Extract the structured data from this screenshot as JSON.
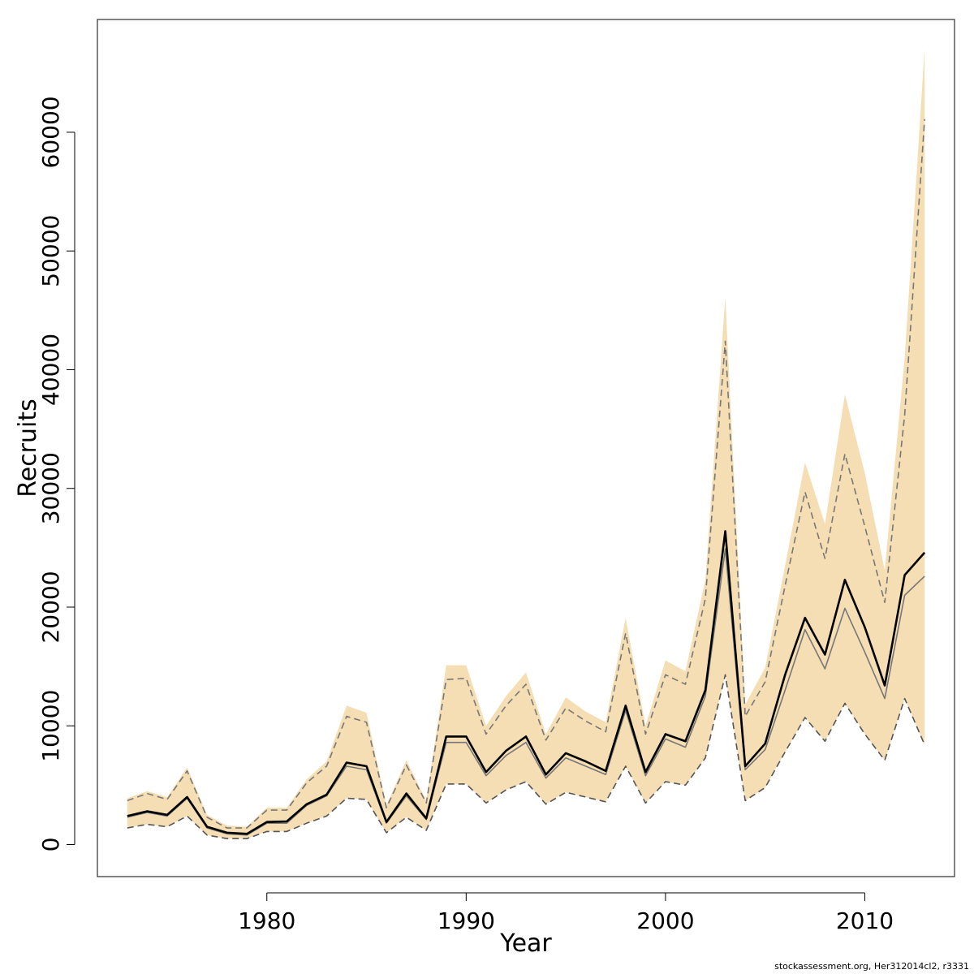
{
  "chart_data": {
    "type": "line",
    "title": "",
    "xlabel": "Year",
    "ylabel": "Recruits",
    "xlim": [
      1971.5,
      2014.5
    ],
    "ylim": [
      -2700,
      69500
    ],
    "x_ticks": [
      1980,
      1990,
      2000,
      2010
    ],
    "y_ticks": [
      0,
      10000,
      20000,
      30000,
      40000,
      50000,
      60000
    ],
    "grid": false,
    "band_color": "#f5deb3",
    "x": [
      1973,
      1974,
      1975,
      1976,
      1977,
      1978,
      1979,
      1980,
      1981,
      1982,
      1983,
      1984,
      1985,
      1986,
      1987,
      1988,
      1989,
      1990,
      1991,
      1992,
      1993,
      1994,
      1995,
      1996,
      1997,
      1998,
      1999,
      2000,
      2001,
      2002,
      2003,
      2004,
      2005,
      2006,
      2007,
      2008,
      2009,
      2010,
      2011,
      2012,
      2013
    ],
    "series": [
      {
        "role": "band_upper",
        "style": "fill",
        "color": "#f5deb3",
        "values": [
          3900,
          4500,
          4000,
          6500,
          2500,
          1600,
          1500,
          3100,
          3100,
          5500,
          7000,
          11700,
          11100,
          3300,
          7100,
          3700,
          15100,
          15100,
          10000,
          12500,
          14500,
          9300,
          12400,
          11200,
          10300,
          19100,
          10000,
          15500,
          14600,
          22300,
          46100,
          11800,
          14900,
          23500,
          32200,
          27000,
          37900,
          31300,
          23100,
          41000,
          67000
        ]
      },
      {
        "role": "band_lower",
        "style": "fill",
        "color": "#f5deb3",
        "values": [
          1400,
          1700,
          1500,
          2400,
          800,
          500,
          500,
          1100,
          1100,
          1800,
          2400,
          3900,
          3800,
          1000,
          2300,
          1200,
          5100,
          5100,
          3500,
          4600,
          5300,
          3400,
          4400,
          4000,
          3600,
          6600,
          3500,
          5300,
          5000,
          7300,
          14300,
          3700,
          4800,
          7800,
          10700,
          8700,
          11900,
          9300,
          7100,
          12300,
          8400
        ]
      },
      {
        "role": "upper_ci",
        "style": "dashed",
        "color": "#777777",
        "values": [
          3700,
          4300,
          3800,
          6200,
          2300,
          1400,
          1400,
          2900,
          2900,
          5200,
          6600,
          10800,
          10300,
          3100,
          6700,
          3500,
          13900,
          14000,
          9300,
          11700,
          13500,
          8800,
          11500,
          10400,
          9500,
          17800,
          9300,
          14300,
          13500,
          20700,
          42400,
          10800,
          13700,
          21800,
          29700,
          24100,
          32900,
          26800,
          20400,
          36200,
          61100
        ]
      },
      {
        "role": "lower_ci",
        "style": "dashed",
        "color": "#555555",
        "values": [
          1400,
          1700,
          1500,
          2400,
          800,
          500,
          500,
          1100,
          1100,
          1800,
          2400,
          3900,
          3800,
          1000,
          2300,
          1200,
          5100,
          5100,
          3500,
          4600,
          5300,
          3400,
          4400,
          4000,
          3600,
          6600,
          3500,
          5300,
          5000,
          7300,
          14300,
          3700,
          4800,
          7800,
          10700,
          8700,
          11900,
          9300,
          7100,
          12300,
          8400
        ]
      },
      {
        "role": "median",
        "style": "solid",
        "color": "#777777",
        "width": 1.6,
        "values": [
          2300,
          2700,
          2400,
          3900,
          1400,
          900,
          800,
          1800,
          1800,
          3300,
          4100,
          6600,
          6300,
          1800,
          4100,
          2100,
          8600,
          8600,
          5800,
          7500,
          8600,
          5600,
          7300,
          6600,
          5900,
          11300,
          5800,
          8900,
          8200,
          12500,
          24900,
          6300,
          8000,
          13000,
          18100,
          14800,
          19900,
          16200,
          12300,
          21000,
          22600
        ]
      },
      {
        "role": "estimate",
        "style": "solid",
        "color": "#000000",
        "width": 2.6,
        "values": [
          2400,
          2800,
          2500,
          4000,
          1500,
          1000,
          900,
          1900,
          1950,
          3400,
          4200,
          6900,
          6600,
          1900,
          4300,
          2200,
          9100,
          9100,
          6100,
          7900,
          9100,
          5900,
          7700,
          7000,
          6200,
          11700,
          6100,
          9300,
          8700,
          13000,
          26400,
          6600,
          8500,
          14300,
          19100,
          16000,
          22300,
          18300,
          13400,
          22700,
          24600
        ]
      }
    ]
  },
  "credit": "stockassessment.org, Her312014cl2, r3331"
}
